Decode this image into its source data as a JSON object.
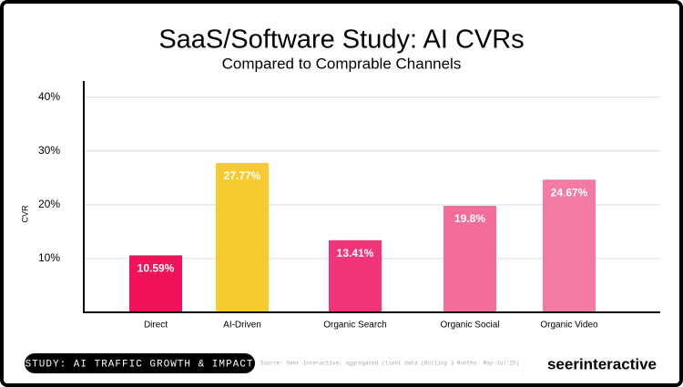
{
  "chart_data": {
    "type": "bar",
    "title": "SaaS/Software Study: AI CVRs",
    "subtitle": "Compared to Comprable Channels",
    "y_label": "CVR",
    "categories": [
      "Direct",
      "AI-Driven",
      "Organic Search",
      "Organic Social",
      "Organic Video"
    ],
    "values": [
      10.59,
      27.77,
      13.41,
      19.8,
      24.67
    ],
    "value_labels": [
      "10.59%",
      "27.77%",
      "13.41%",
      "19.8%",
      "24.67%"
    ],
    "colors": [
      "#f2125a",
      "#f7cb2f",
      "#f2347a",
      "#f36c9c",
      "#f47aa2"
    ],
    "ylim": [
      0,
      43
    ],
    "yticks": [
      {
        "value": 10,
        "label": "10%"
      },
      {
        "value": 20,
        "label": "20%"
      },
      {
        "value": 30,
        "label": "30%"
      },
      {
        "value": 40,
        "label": "40%"
      }
    ],
    "grid": true
  },
  "footer": {
    "badge": "STUDY: AI TRAFFIC GROWTH & IMPACT",
    "source": "Source: Seer Interactive, aggregated client data (Rolling 3 Months: May-Jul'25)",
    "logo": "seerinteractive"
  }
}
